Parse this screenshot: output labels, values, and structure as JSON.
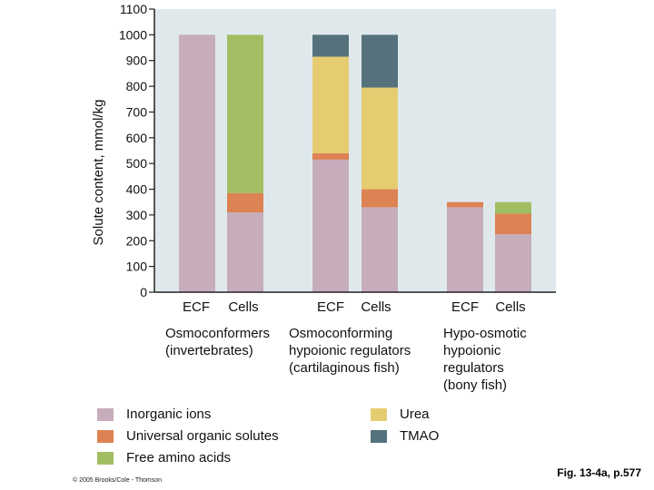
{
  "chart_data": {
    "type": "bar",
    "stacked": true,
    "ylabel": "Solute content, mmol/kg",
    "ylim": [
      0,
      1100
    ],
    "yticks": [
      0,
      100,
      200,
      300,
      400,
      500,
      600,
      700,
      800,
      900,
      1000,
      1100
    ],
    "categories": [
      "ECF",
      "Cells",
      "ECF",
      "Cells",
      "ECF",
      "Cells"
    ],
    "groups": [
      {
        "label": "Osmoconformers\n(invertebrates)",
        "categories": [
          "ECF",
          "Cells"
        ]
      },
      {
        "label": "Osmoconforming\nhypoionic regulators\n(cartilaginous fish)",
        "categories": [
          "ECF",
          "Cells"
        ]
      },
      {
        "label": "Hypo-osmotic\nhypoionic\nregulators\n(bony fish)",
        "categories": [
          "ECF",
          "Cells"
        ]
      }
    ],
    "series": [
      {
        "name": "Inorganic ions",
        "color": "#c7adbb",
        "values": [
          1000,
          310,
          515,
          330,
          330,
          225
        ]
      },
      {
        "name": "Universal organic solutes",
        "color": "#dc8253",
        "values": [
          0,
          75,
          25,
          70,
          20,
          80
        ]
      },
      {
        "name": "Free amino acids",
        "color": "#a2be63",
        "values": [
          0,
          615,
          0,
          0,
          0,
          45
        ]
      },
      {
        "name": "Urea",
        "color": "#e6cc71",
        "values": [
          0,
          0,
          375,
          395,
          0,
          0
        ]
      },
      {
        "name": "TMAO",
        "color": "#55727c",
        "values": [
          0,
          0,
          85,
          205,
          0,
          0
        ]
      }
    ]
  },
  "legend": {
    "left": [
      {
        "label": "Inorganic ions",
        "color": "#c7adbb"
      },
      {
        "label": "Universal organic solutes",
        "color": "#dc8253"
      },
      {
        "label": "Free amino acids",
        "color": "#a2be63"
      }
    ],
    "right": [
      {
        "label": "Urea",
        "color": "#e6cc71"
      },
      {
        "label": "TMAO",
        "color": "#55727c"
      }
    ]
  },
  "colors": {
    "plot_background": "#dfe9ec",
    "axis": "#222222"
  },
  "footer": {
    "copyright": "© 2005 Brooks/Cole - Thomson",
    "figure_ref": "Fig. 13-4a, p.577"
  }
}
